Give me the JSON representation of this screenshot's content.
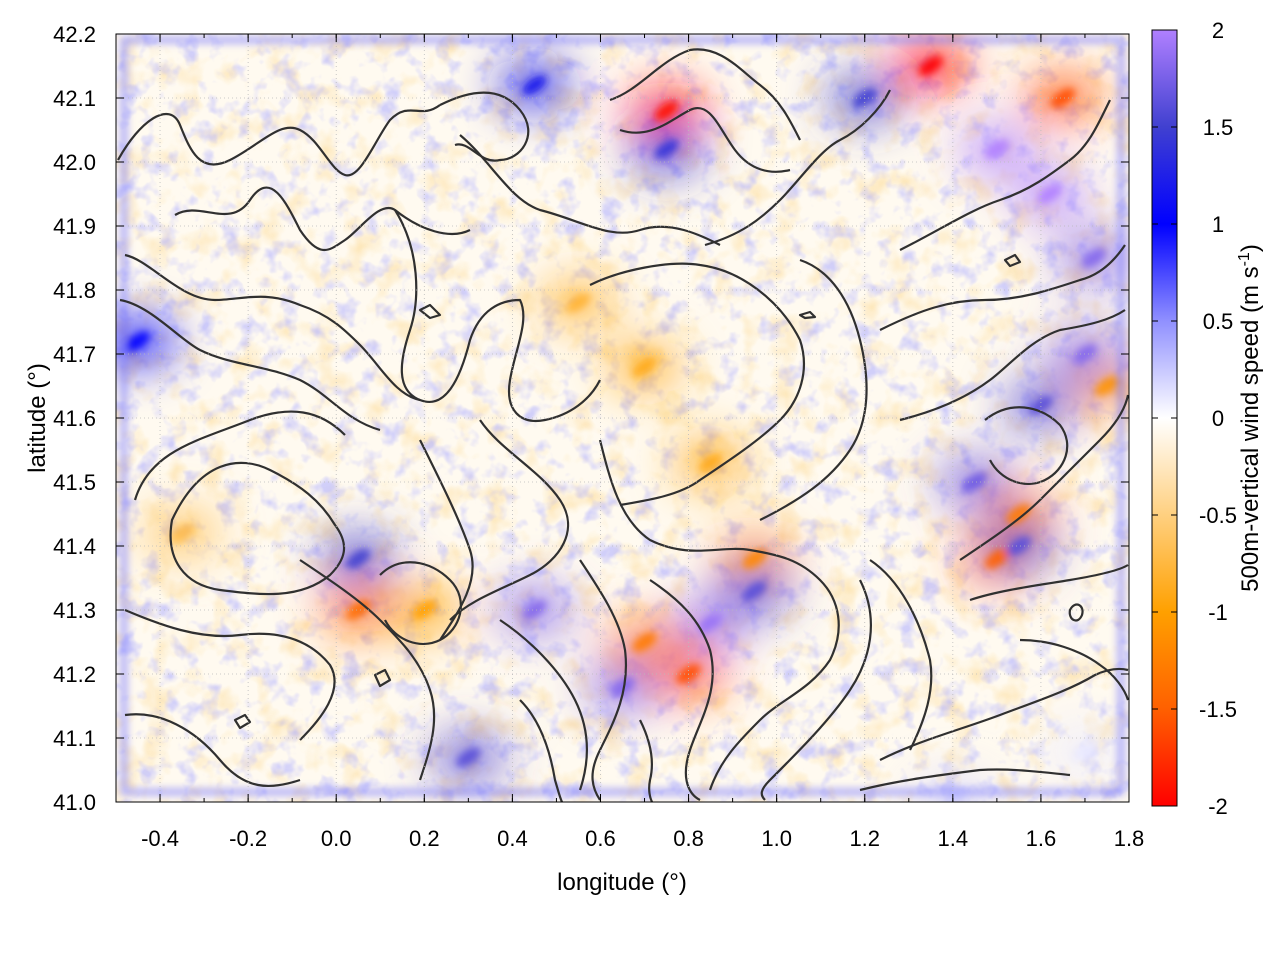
{
  "chart_data": {
    "type": "heatmap",
    "title": "",
    "xlabel": "longitude (°)",
    "ylabel": "latitude (°)",
    "xlim": [
      -0.5,
      1.8
    ],
    "ylim": [
      41.0,
      42.2
    ],
    "xticks": [
      -0.4,
      -0.2,
      0.0,
      0.2,
      0.4,
      0.6,
      0.8,
      1.0,
      1.2,
      1.4,
      1.6,
      1.8
    ],
    "xtick_labels": [
      "-0.4",
      "-0.2",
      "0.0",
      "0.2",
      "0.4",
      "0.6",
      "0.8",
      "1.0",
      "1.2",
      "1.4",
      "1.6",
      "1.8"
    ],
    "yticks": [
      41.0,
      41.1,
      41.2,
      41.3,
      41.4,
      41.5,
      41.6,
      41.7,
      41.8,
      41.9,
      42.0,
      42.1,
      42.2
    ],
    "ytick_labels": [
      "41.0",
      "41.1",
      "41.2",
      "41.3",
      "41.4",
      "41.5",
      "41.6",
      "41.7",
      "41.8",
      "41.9",
      "42.0",
      "42.1",
      "42.2"
    ],
    "grid": true,
    "colorbar": {
      "label": "500m-vertical wind speed (m s",
      "label_sup": "-1",
      "label_close": ")",
      "range": [
        -2,
        2
      ],
      "ticks": [
        2,
        1.5,
        1,
        0.5,
        0,
        -0.5,
        -1,
        -1.5,
        -2
      ],
      "tick_labels": [
        "2",
        "1.5",
        "1",
        "0.5",
        "0",
        "-0.5",
        "-1",
        "-1.5",
        "-2"
      ],
      "colors": {
        "2": "#b080ff",
        "1.5": "#4040d0",
        "1": "#0000ff",
        "0.5": "#9090ff",
        "0": "#ffffff",
        "-0.5": "#ffd080",
        "-1": "#ffa000",
        "-1.5": "#ff6000",
        "-2": "#ff0000"
      }
    },
    "field_features": [
      {
        "lon": 0.7,
        "lat": 41.68,
        "value": -0.9
      },
      {
        "lon": 0.85,
        "lat": 41.53,
        "value": -0.9
      },
      {
        "lon": 0.95,
        "lat": 41.38,
        "value": -1.2
      },
      {
        "lon": 0.55,
        "lat": 41.78,
        "value": -0.8
      },
      {
        "lon": -0.35,
        "lat": 41.42,
        "value": -0.7
      },
      {
        "lon": 0.05,
        "lat": 41.3,
        "value": -1.4
      },
      {
        "lon": 0.8,
        "lat": 41.2,
        "value": -1.6
      },
      {
        "lon": 0.7,
        "lat": 41.25,
        "value": -1.3
      },
      {
        "lon": 1.35,
        "lat": 42.15,
        "value": -2.0
      },
      {
        "lon": 0.75,
        "lat": 42.08,
        "value": -1.9
      },
      {
        "lon": 1.65,
        "lat": 42.1,
        "value": -1.6
      },
      {
        "lon": 1.75,
        "lat": 41.65,
        "value": -1.1
      },
      {
        "lon": 1.55,
        "lat": 41.45,
        "value": -1.3
      },
      {
        "lon": 1.5,
        "lat": 41.38,
        "value": -1.5
      },
      {
        "lon": 0.2,
        "lat": 41.3,
        "value": -1.0
      },
      {
        "lon": 1.5,
        "lat": 42.02,
        "value": 2.0
      },
      {
        "lon": 1.62,
        "lat": 41.95,
        "value": 2.0
      },
      {
        "lon": 1.72,
        "lat": 41.85,
        "value": 1.8
      },
      {
        "lon": 1.7,
        "lat": 41.7,
        "value": 1.8
      },
      {
        "lon": 1.6,
        "lat": 41.62,
        "value": 1.6
      },
      {
        "lon": 1.45,
        "lat": 41.5,
        "value": 1.7
      },
      {
        "lon": 1.55,
        "lat": 41.4,
        "value": 1.6
      },
      {
        "lon": 0.85,
        "lat": 41.28,
        "value": 1.9
      },
      {
        "lon": 0.45,
        "lat": 41.3,
        "value": 1.8
      },
      {
        "lon": 0.65,
        "lat": 41.18,
        "value": 1.8
      },
      {
        "lon": 0.3,
        "lat": 41.07,
        "value": 1.6
      },
      {
        "lon": 0.05,
        "lat": 41.38,
        "value": 1.5
      },
      {
        "lon": 0.75,
        "lat": 42.02,
        "value": 1.4
      },
      {
        "lon": 1.2,
        "lat": 42.1,
        "value": 1.5
      },
      {
        "lon": 0.45,
        "lat": 42.12,
        "value": 1.2
      },
      {
        "lon": -0.45,
        "lat": 41.72,
        "value": 1.0
      },
      {
        "lon": 0.95,
        "lat": 41.33,
        "value": 1.6
      },
      {
        "lon": 1.4,
        "lat": 41.0,
        "value": 0.2
      },
      {
        "lon": 1.7,
        "lat": 41.08,
        "value": 0.1
      }
    ]
  }
}
